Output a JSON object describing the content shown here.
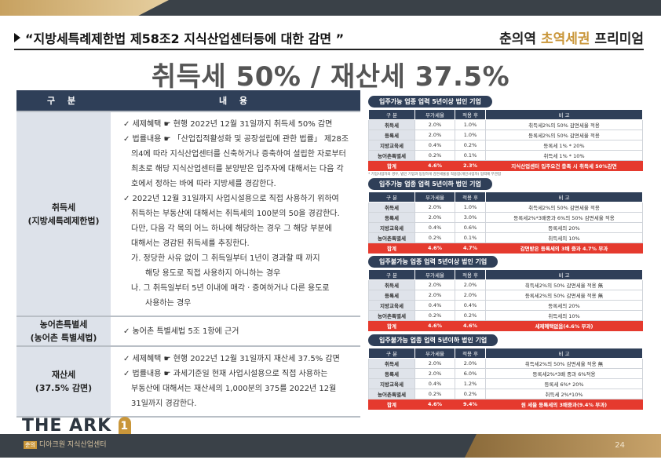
{
  "header": {
    "title": "“지방세특례제한법 제58조2 지식산업센터등에 대한 감면 ”",
    "brand_prefix": "춘의역 ",
    "brand_highlight": "초역세권",
    "brand_suffix": " 프리미엄",
    "headline": "취득세 50% / 재산세 37.5%"
  },
  "left_table": {
    "headers": [
      "구 분",
      "내 용"
    ],
    "rows": [
      {
        "category": [
          "취득세",
          "(지방세특례제한법)"
        ],
        "lines": [
          "✓  세제혜택 ☛ 현행 2022년 12월 31일까지 취득세 50% 감면",
          "✓  법률내용 ☛ 「산업집적활성화 및 공장설립에 관한 법률」 제28조",
          "의4에 따라 지식산업센터를 신축하거나 증축하여 설립한 자로부터",
          "최초로 해당 지식산업센터를 분양받은 입주자에 대해서는 다음 각",
          "호에서 정하는 바에 따라 지방세를 경감한다.",
          "✓  2022년 12월 31일까지 사업시설용으로 직접 사용하기 위하여",
          "취득하는 부동산에 대해서는 취득세의 100분의 50을 경감한다.",
          "다만, 다음 각 목의 어느 하나에 해당하는 경우 그 해당 부분에",
          "대해서는 경감된 취득세를 추징한다.",
          "가. 정당한 사유 없이 그 취득일부터 1년이 경과할 때 까지",
          "해당 용도로 직접 사용하지 아니하는 경우",
          "나. 그 취득일부터 5년 이내에 매각ㆍ증여하거나 다른 용도로",
          "사용하는 경우"
        ]
      },
      {
        "category": [
          "농어촌특별세",
          "(농어촌 특별세법)"
        ],
        "lines": [
          "✓  농어촌 특별세법 5조 1항에 근거"
        ]
      },
      {
        "category": [
          "재산세",
          "(37.5% 감면)"
        ],
        "lines": [
          "✓  세제혜택 ☛ 현행 2022년 12월 31일까지 재산세 37.5% 감면",
          "✓  법률내용 ☛ 과세기준일 현재 사업시설용으로 직접 사용하는",
          "부동산에 대해서는 재산세의 1,000분의 375를 2022년 12월",
          "31일까지 경감한다."
        ]
      }
    ]
  },
  "right_tables": [
    {
      "title": "입주가능 업종 업력 5년이상 법인 기업",
      "headers": [
        "구 분",
        "부가세율",
        "적용 후",
        "비 고"
      ],
      "rows": [
        [
          "취득세",
          "2.0%",
          "1.0%",
          "취득세2%의 50% 감면세율 적용"
        ],
        [
          "등록세",
          "2.0%",
          "1.0%",
          "등록세2%의 50% 감면세율 적용"
        ],
        [
          "지방교육세",
          "0.4%",
          "0.2%",
          "등록세 1% * 20%"
        ],
        [
          "농어촌특별세",
          "0.2%",
          "0.1%",
          "취득세 1% * 10%"
        ]
      ],
      "total": [
        "합계",
        "4.6%",
        "2.3%",
        "지식산업센터 입주요건 충족 시 취득세 50%감면"
      ],
      "note": "* 기업사업자의 경우, 법인 기업과 동일하게 감면세율을 적용함(개인사업자) 업력에 무관함"
    },
    {
      "title": "입주가능 업종 업력 5년이하 법인 기업",
      "headers": [
        "구 분",
        "부가세율",
        "적용 후",
        "비 고"
      ],
      "rows": [
        [
          "취득세",
          "2.0%",
          "1.0%",
          "취득세2%의 50% 감면세율 적용"
        ],
        [
          "등록세",
          "2.0%",
          "3.0%",
          "등록세2%*3배중과 6%의 50% 감면세율 적용"
        ],
        [
          "지방교육세",
          "0.4%",
          "0.6%",
          "등록세의 20%"
        ],
        [
          "농어촌특별세",
          "0.2%",
          "0.1%",
          "취득세의 10%"
        ]
      ],
      "total": [
        "합계",
        "4.6%",
        "4.7%",
        "감면받은 등록세의 3배 중과 4.7% 부과"
      ],
      "note": ""
    },
    {
      "title": "입주불가능 업종 업력 5년이상 법인 기업",
      "headers": [
        "구 분",
        "부가세율",
        "적용 후",
        "비 고"
      ],
      "rows": [
        [
          "취득세",
          "2.0%",
          "2.0%",
          "취득세2%의 50% 감면세율 적용 無"
        ],
        [
          "등록세",
          "2.0%",
          "2.0%",
          "등록세2%의 50% 감면세율 적용 無"
        ],
        [
          "지방교육세",
          "0.4%",
          "0.4%",
          "등록세의 20%"
        ],
        [
          "농어촌특별세",
          "0.2%",
          "0.2%",
          "취득세의 10%"
        ]
      ],
      "total": [
        "합계",
        "4.6%",
        "4.6%",
        "세제혜택없음(4.6% 부과)"
      ],
      "note": ""
    },
    {
      "title": "입주불가능 업종 업력 5년이하 법인 기업",
      "headers": [
        "구 분",
        "부가세율",
        "적용 후",
        "비 고"
      ],
      "rows": [
        [
          "취득세",
          "2.0%",
          "2.0%",
          "취득세2%의 50% 감면세율 적용 無"
        ],
        [
          "등록세",
          "2.0%",
          "6.0%",
          "등록세2%*3배 중과 6%적용"
        ],
        [
          "지방교육세",
          "0.4%",
          "1.2%",
          "등록세 6%* 20%"
        ],
        [
          "농어촌특별세",
          "0.2%",
          "0.2%",
          "취득세 2%*10%"
        ]
      ],
      "total": [
        "합계",
        "4.6%",
        "9.4%",
        "원 세율 등록세의 3배중과(9.4% 부과)"
      ],
      "note": ""
    }
  ],
  "footer": {
    "logo_text": "THE ARK",
    "logo_mark": "1",
    "company_box": "춘의",
    "company": "디아크원 지식산업센터",
    "page": "24"
  },
  "colors": {
    "navy": "#2f3f58",
    "gold": "#c9963a",
    "total_red": "#e53a2e",
    "dark_bar": "#3a4148"
  }
}
